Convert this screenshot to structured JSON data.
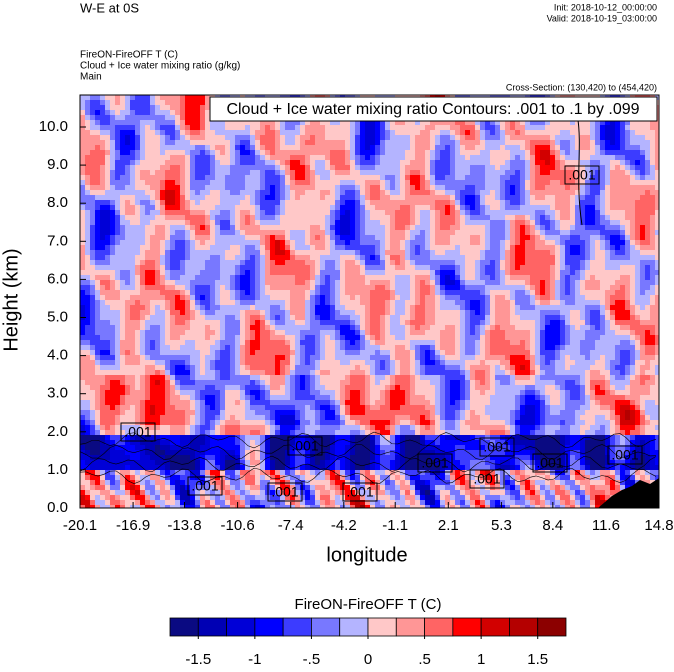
{
  "header": {
    "title": "W-E at 0S",
    "init": "Init: 2018-10-12_00:00:00",
    "valid": "Valid: 2018-10-19_03:00:00",
    "subtitles": [
      "FireON-FireOFF T   (C)",
      "Cloud + Ice water mixing ratio   (g/kg)",
      "Main"
    ],
    "cross_section": "Cross-Section: (130,420) to (454,420)"
  },
  "chart_data": {
    "type": "contour",
    "contour_info": "Cloud + Ice water mixing ratio Contours: .001 to .1 by .099",
    "contour_labels": [
      ".001",
      ".001",
      ".001",
      ".001",
      ".001",
      ".001",
      ".001",
      ".001",
      ".001",
      ".001",
      ".001"
    ],
    "xlabel": "longitude",
    "ylabel": "Height (km)",
    "xlim": [
      -20.1,
      14.8
    ],
    "xticks": [
      -20.1,
      -16.9,
      -13.8,
      -10.6,
      -7.4,
      -4.2,
      -1.1,
      2.1,
      5.3,
      8.4,
      11.6,
      14.8
    ],
    "ylim": [
      0,
      10.84
    ],
    "yticks": [
      {
        "value": 0,
        "label": "0.0"
      },
      {
        "value": 1,
        "label": "1.0"
      },
      {
        "value": 2,
        "label": "2.0"
      },
      {
        "value": 3,
        "label": "3.0"
      },
      {
        "value": 4,
        "label": "4.0"
      },
      {
        "value": 5,
        "label": "5.0"
      },
      {
        "value": 6,
        "label": "6.0"
      },
      {
        "value": 7,
        "label": "7.0"
      },
      {
        "value": 8,
        "label": "8.0"
      },
      {
        "value": 9,
        "label": "9.0"
      },
      {
        "value": 10,
        "label": "10.0"
      }
    ],
    "colorbar": {
      "title": "FireON-FireOFF T  (C)",
      "lim": [
        -1.75,
        1.75
      ],
      "colors": [
        "#0a0a82",
        "#0000b4",
        "#0000d7",
        "#0000ff",
        "#3c3cff",
        "#7878ff",
        "#b4b4ff",
        "#ffc8c8",
        "#ff9696",
        "#ff6464",
        "#ff0000",
        "#d20000",
        "#b40000",
        "#8c0000"
      ],
      "ticks": [
        -1.5,
        -1,
        {
          "value": -0.5,
          "label": "-.5"
        },
        0,
        {
          "value": 0.5,
          "label": ".5"
        },
        1,
        1.5
      ]
    }
  }
}
